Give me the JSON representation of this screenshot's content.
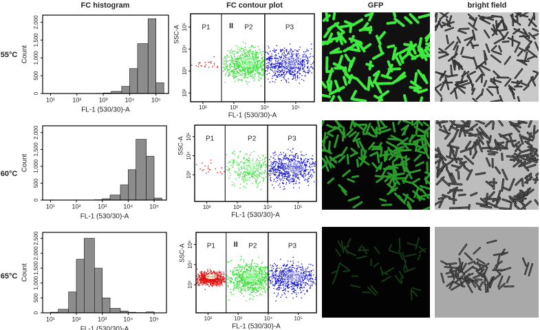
{
  "columns": [
    "FC histogram",
    "FC contour plot",
    "GFP",
    "bright field"
  ],
  "rows": [
    "55°C",
    "60°C",
    "65°C"
  ],
  "chart_data": [
    {
      "type": "histogram",
      "x_label": "FL-1 (530/30)-A",
      "y_label": "Count",
      "xscale": "log",
      "color": "#8c8c8c",
      "bins": [
        10,
        20,
        50,
        100,
        200,
        500,
        1000,
        2000,
        5000,
        10000,
        20000,
        50000,
        100000,
        200000
      ],
      "values": [
        0,
        0,
        0,
        0,
        0,
        5,
        15,
        60,
        200,
        700,
        1400,
        2100,
        300
      ],
      "xlim": [
        5,
        300000
      ],
      "ylim": [
        0,
        2200
      ],
      "xticks": [
        {
          "value": 10,
          "label": "10¹"
        },
        {
          "value": 100,
          "label": "10²"
        },
        {
          "value": 1000,
          "label": "10³"
        },
        {
          "value": 10000,
          "label": "10⁴"
        },
        {
          "value": 100000,
          "label": "10⁵"
        }
      ],
      "yticks": [
        0,
        500,
        {
          "value": 1000,
          "label": "1,000"
        },
        {
          "value": 1500,
          "label": "1,500"
        },
        {
          "value": 2000,
          "label": "2,000"
        }
      ]
    },
    {
      "type": "histogram",
      "x_label": "FL-1 (530/30)-A",
      "y_label": "Count",
      "xscale": "log",
      "color": "#8c8c8c",
      "bins": [
        10,
        20,
        50,
        100,
        200,
        500,
        1000,
        2000,
        5000,
        10000,
        20000,
        50000,
        100000,
        200000
      ],
      "values": [
        0,
        0,
        0,
        0,
        2,
        10,
        40,
        150,
        450,
        900,
        1800,
        1300,
        60
      ],
      "xlim": [
        5,
        300000
      ],
      "ylim": [
        0,
        2200
      ],
      "xticks": [
        {
          "value": 10,
          "label": "10¹"
        },
        {
          "value": 100,
          "label": "10²"
        },
        {
          "value": 1000,
          "label": "10³"
        },
        {
          "value": 10000,
          "label": "10⁴"
        },
        {
          "value": 100000,
          "label": "10⁵"
        }
      ],
      "yticks": [
        0,
        500,
        {
          "value": 1000,
          "label": "1,000"
        },
        {
          "value": 1500,
          "label": "1,500"
        },
        {
          "value": 2000,
          "label": "2,000"
        }
      ]
    },
    {
      "type": "histogram",
      "x_label": "FL-1 (530/30)-A",
      "y_label": "Count",
      "xscale": "log",
      "color": "#8c8c8c",
      "bins": [
        10,
        20,
        50,
        100,
        200,
        500,
        1000,
        2000,
        5000,
        10000,
        20000,
        50000,
        100000,
        200000
      ],
      "values": [
        20,
        120,
        700,
        1800,
        2500,
        1500,
        500,
        150,
        60,
        20,
        10,
        30,
        0
      ],
      "xlim": [
        5,
        300000
      ],
      "ylim": [
        0,
        2700
      ],
      "xticks": [
        {
          "value": 10,
          "label": "10¹"
        },
        {
          "value": 100,
          "label": "10²"
        },
        {
          "value": 1000,
          "label": "10³"
        },
        {
          "value": 10000,
          "label": "10⁴"
        },
        {
          "value": 100000,
          "label": "10⁵"
        }
      ],
      "yticks": [
        0,
        500,
        {
          "value": 1000,
          "label": "1,000"
        },
        {
          "value": 1500,
          "label": "1,500"
        },
        {
          "value": 2000,
          "label": "2,000"
        },
        {
          "value": 2500,
          "label": "2,500"
        }
      ]
    },
    {
      "type": "contour",
      "x_label": "FL-1 (530/30)-A",
      "y_label": "SSC-A",
      "xscale": "log",
      "yscale": "log",
      "xlim": [
        40,
        400000
      ],
      "ylim": [
        40,
        400000
      ],
      "annotation": "II",
      "xticks": [
        {
          "value": 100,
          "label": "10²"
        },
        {
          "value": 1000,
          "label": "10³"
        },
        {
          "value": 10000,
          "label": "10⁴"
        },
        {
          "value": 100000,
          "label": "10⁵"
        }
      ],
      "yticks": [
        {
          "value": 100,
          "label": "10²"
        },
        {
          "value": 1000,
          "label": "10³"
        },
        {
          "value": 10000,
          "label": "10⁴"
        },
        {
          "value": 100000,
          "label": "10⁵"
        }
      ],
      "gates": [
        {
          "label": "P1",
          "color": "#e01010",
          "x": [
            40,
            400
          ]
        },
        {
          "label": "P2",
          "color": "#33e033",
          "x": [
            400,
            10000
          ]
        },
        {
          "label": "P3",
          "color": "#1414d8",
          "x": [
            10000,
            400000
          ]
        }
      ]
    },
    {
      "type": "contour",
      "x_label": "FL-1 (530/30)-A",
      "y_label": "SSC-A",
      "xscale": "log",
      "yscale": "log",
      "xlim": [
        40,
        400000
      ],
      "ylim": [
        40,
        400000
      ],
      "xticks": [
        {
          "value": 100,
          "label": "10²"
        },
        {
          "value": 1000,
          "label": "10³"
        },
        {
          "value": 10000,
          "label": "10⁴"
        },
        {
          "value": 100000,
          "label": "10⁵"
        }
      ],
      "yticks": [
        {
          "value": 1000,
          "label": "10³"
        },
        {
          "value": 10000,
          "label": "10⁴"
        },
        {
          "value": 100000,
          "label": "10⁵"
        }
      ],
      "gates": [
        {
          "label": "P1",
          "color": "#e01010",
          "x": [
            40,
            400
          ]
        },
        {
          "label": "P2",
          "color": "#33e033",
          "x": [
            400,
            10000
          ]
        },
        {
          "label": "P3",
          "color": "#1414d8",
          "x": [
            10000,
            400000
          ]
        }
      ]
    },
    {
      "type": "contour",
      "x_label": "FL-1 (530/30)-A",
      "y_label": "SSC-A",
      "xscale": "log",
      "yscale": "log",
      "xlim": [
        40,
        400000
      ],
      "ylim": [
        40,
        400000
      ],
      "annotation": "II",
      "xticks": [
        {
          "value": 100,
          "label": "10²"
        },
        {
          "value": 1000,
          "label": "10³"
        },
        {
          "value": 10000,
          "label": "10⁴"
        },
        {
          "value": 100000,
          "label": "10⁵"
        }
      ],
      "yticks": [
        {
          "value": 1000,
          "label": "10³"
        },
        {
          "value": 10000,
          "label": "10⁴"
        },
        {
          "value": 100000,
          "label": "10⁵"
        }
      ],
      "gates": [
        {
          "label": "P1",
          "color": "#e01010",
          "x": [
            40,
            400
          ]
        },
        {
          "label": "P2",
          "color": "#33e033",
          "x": [
            400,
            10000
          ]
        },
        {
          "label": "P3",
          "color": "#1414d8",
          "x": [
            10000,
            400000
          ]
        }
      ]
    }
  ]
}
